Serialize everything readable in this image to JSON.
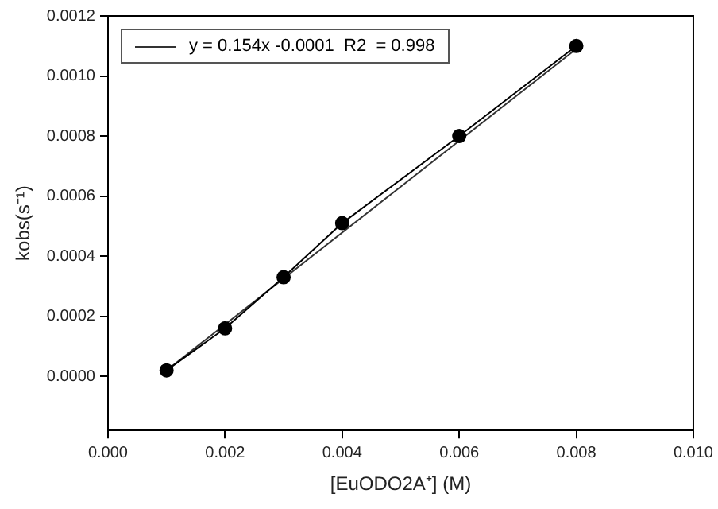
{
  "chart_data": {
    "type": "line",
    "xlabel": "[EuODO2A⁺] (M)",
    "ylabel": "kobs(s⁻¹)",
    "x": [
      0.001,
      0.002,
      0.003,
      0.004,
      0.006,
      0.008
    ],
    "series": [
      {
        "color": "#000000",
        "values": [
          2e-05,
          0.00016,
          0.00033,
          0.00051,
          0.0008,
          0.0011
        ]
      },
      {
        "name": "y = 0.154x -0.0001  R2  = 0.998",
        "color": "#333333",
        "marker": "none",
        "x": [
          0.001,
          0.008
        ],
        "values": [
          2e-05,
          0.00109
        ]
      }
    ],
    "xlim": [
      0,
      0.01
    ],
    "ylim": [
      -0.00018,
      0.0012
    ],
    "xticks": [
      {
        "value": 0,
        "label": "0.000"
      },
      {
        "value": 0.002,
        "label": "0.002"
      },
      {
        "value": 0.004,
        "label": "0.004"
      },
      {
        "value": 0.006,
        "label": "0.006"
      },
      {
        "value": 0.008,
        "label": "0.008"
      },
      {
        "value": 0.01,
        "label": "0.010"
      }
    ],
    "yticks": [
      {
        "value": 0,
        "label": "0.0000"
      },
      {
        "value": 0.0002,
        "label": "0.0002"
      },
      {
        "value": 0.0004,
        "label": "0.0004"
      },
      {
        "value": 0.0006,
        "label": "0.0006"
      },
      {
        "value": 0.0008,
        "label": "0.0008"
      },
      {
        "value": 0.001,
        "label": "0.0010"
      },
      {
        "value": 0.0012,
        "label": "0.0012"
      }
    ],
    "grid": false,
    "legend": "top left",
    "marker": "circle",
    "line_style": "solid"
  }
}
